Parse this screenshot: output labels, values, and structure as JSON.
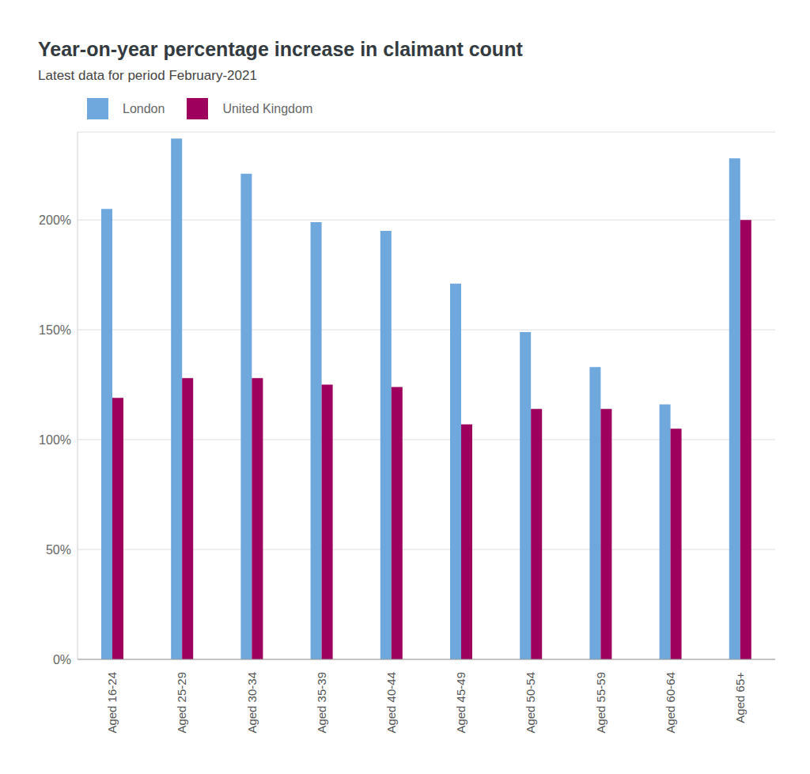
{
  "chart_data": {
    "type": "bar",
    "title": "Year-on-year percentage increase in claimant count",
    "subtitle": "Latest data for period February-2021",
    "categories": [
      "Aged 16-24",
      "Aged 25-29",
      "Aged 30-34",
      "Aged 35-39",
      "Aged 40-44",
      "Aged 45-49",
      "Aged 50-54",
      "Aged 55-59",
      "Aged 60-64",
      "Aged 65+"
    ],
    "series": [
      {
        "name": "London",
        "color": "#6fa8dc",
        "values": [
          205,
          237,
          221,
          199,
          195,
          171,
          149,
          133,
          116,
          228
        ]
      },
      {
        "name": "United Kingdom",
        "color": "#9e005d",
        "values": [
          119,
          128,
          128,
          125,
          124,
          107,
          114,
          114,
          105,
          200
        ]
      }
    ],
    "ylim": [
      0,
      240
    ],
    "yticks": [
      {
        "value": 0,
        "label": "0%"
      },
      {
        "value": 50,
        "label": "50%"
      },
      {
        "value": 100,
        "label": "100%"
      },
      {
        "value": 150,
        "label": "150%"
      },
      {
        "value": 200,
        "label": "200%"
      }
    ],
    "grid": true,
    "legend": "top"
  }
}
